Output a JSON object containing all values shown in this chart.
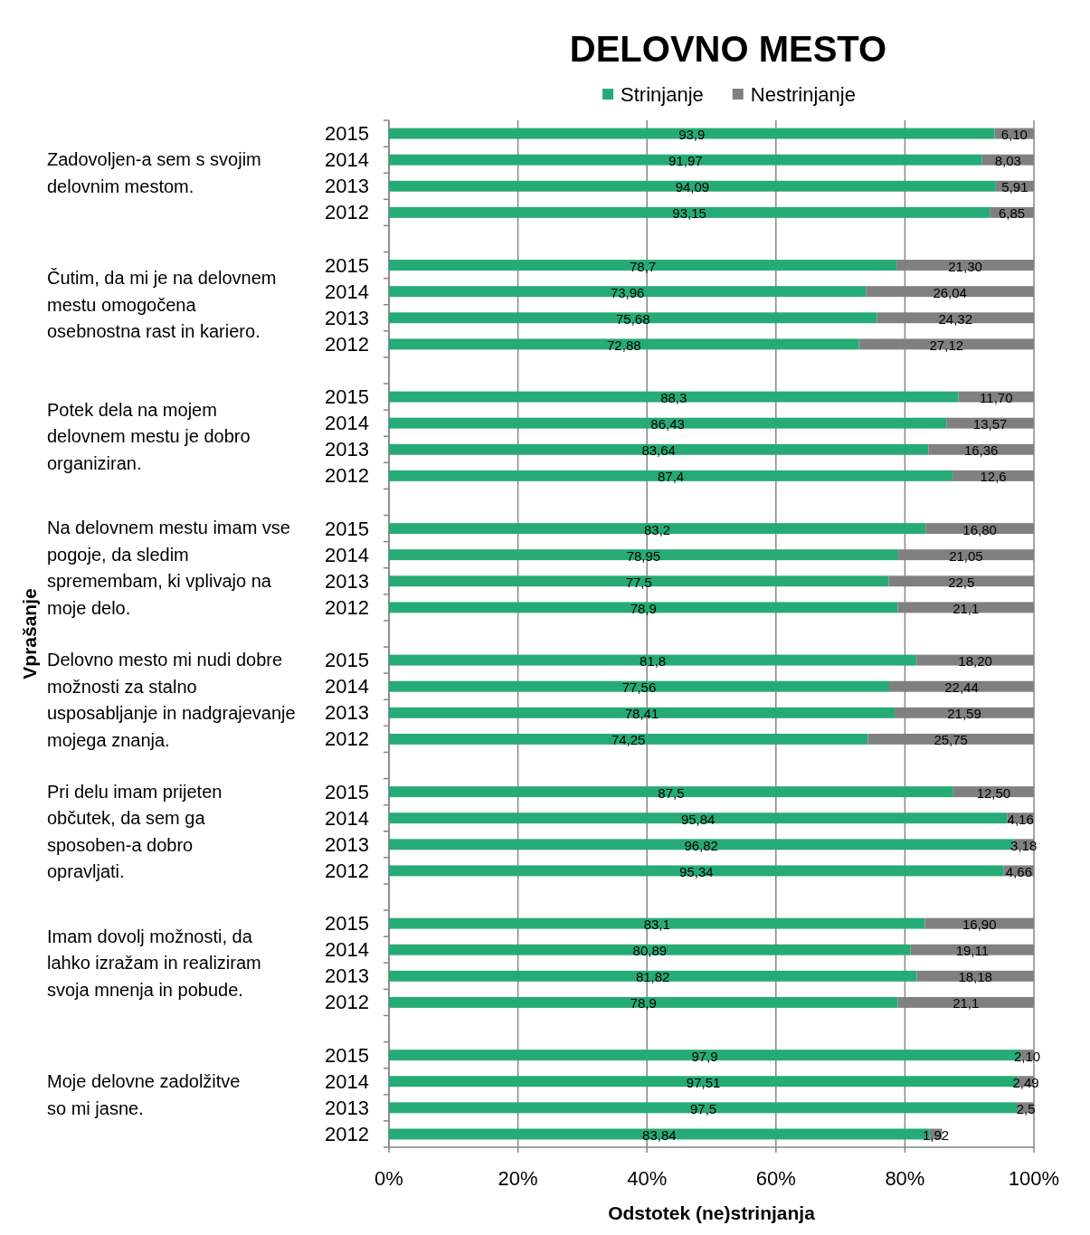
{
  "chart_data": {
    "type": "bar",
    "orientation": "horizontal",
    "stacked": true,
    "title": "DELOVNO MESTO",
    "xlabel": "Odstotek (ne)strinjanja",
    "categories": [
      "2015",
      "2014",
      "2013",
      "2012",
      null,
      "2015",
      "2014",
      "2013",
      "2012",
      null,
      "2015",
      "2014",
      "2013",
      "2012",
      null,
      "2015",
      "2014",
      "2013",
      "2012",
      null,
      "2015",
      "2014",
      "2013",
      "2012",
      null,
      "2015",
      "2014",
      "2013",
      "2012",
      null,
      "2015",
      "2014",
      "2013",
      "2012",
      null,
      "2015",
      "2014",
      "2013",
      "2012"
    ],
    "series": [
      {
        "name": "Strinjanje",
        "color": "#26ab76",
        "values": [
          93.9,
          91.97,
          94.09,
          93.15,
          null,
          78.7,
          73.96,
          75.68,
          72.88,
          null,
          88.3,
          86.43,
          83.64,
          87.4,
          null,
          83.2,
          78.95,
          77.5,
          78.9,
          null,
          81.8,
          77.56,
          78.41,
          74.25,
          null,
          87.5,
          95.84,
          96.82,
          95.34,
          null,
          83.1,
          80.89,
          81.82,
          78.9,
          null,
          97.9,
          97.51,
          97.5,
          83.84
        ],
        "value_labels": [
          "93,9",
          "91,97",
          "94,09",
          "93,15",
          null,
          "78,7",
          "73,96",
          "75,68",
          "72,88",
          null,
          "88,3",
          "86,43",
          "83,64",
          "87,4",
          null,
          "83,2",
          "78,95",
          "77,5",
          "78,9",
          null,
          "81,8",
          "77,56",
          "78,41",
          "74,25",
          null,
          "87,5",
          "95,84",
          "96,82",
          "95,34",
          null,
          "83,1",
          "80,89",
          "81,82",
          "78,9",
          null,
          "97,9",
          "97,51",
          "97,5",
          "83,84"
        ]
      },
      {
        "name": "Nestrinjanje",
        "color": "#808080",
        "values": [
          6.1,
          8.03,
          5.91,
          6.85,
          null,
          21.3,
          26.04,
          24.32,
          27.12,
          null,
          11.7,
          13.57,
          16.36,
          12.6,
          null,
          16.8,
          21.05,
          22.5,
          21.1,
          null,
          18.2,
          22.44,
          21.59,
          25.75,
          null,
          12.5,
          4.16,
          3.18,
          4.66,
          null,
          16.9,
          19.11,
          18.18,
          21.1,
          null,
          2.1,
          2.49,
          2.5,
          1.92
        ],
        "value_labels": [
          "6,10",
          "8,03",
          "5,91",
          "6,85",
          null,
          "21,30",
          "26,04",
          "24,32",
          "27,12",
          null,
          "11,70",
          "13,57",
          "16,36",
          "12,6",
          null,
          "16,80",
          "21,05",
          "22,5",
          "21,1",
          null,
          "18,20",
          "22,44",
          "21,59",
          "25,75",
          null,
          "12,50",
          "4,16",
          "3,18",
          "4,66",
          null,
          "16,90",
          "19,11",
          "18,18",
          "21,1",
          null,
          "2,10",
          "2,49",
          "2,5",
          "1,92"
        ]
      }
    ],
    "xlim": [
      0,
      100
    ],
    "xticks": [
      {
        "value": 0,
        "label": "0%"
      },
      {
        "value": 20,
        "label": "20%"
      },
      {
        "value": 40,
        "label": "40%"
      },
      {
        "value": 60,
        "label": "60%"
      },
      {
        "value": 80,
        "label": "80%"
      },
      {
        "value": 100,
        "label": "100%"
      }
    ],
    "grid": "x",
    "legend": "top",
    "annotations": [
      "Zadovoljen-a sem s svojim\ndelovnim mestom.",
      "Čutim, da mi je na delovnem\nmestu omogočena\nosebnostna rast in kariero.",
      "Potek dela na mojem\ndelovnem mestu je dobro\norganiziran.",
      "Na delovnem mestu imam vse\npogoje, da sledim\nspremembam, ki vplivajo na\nmoje delo.",
      "Delovno mesto mi nudi dobre\nmožnosti za stalno\nusposabljanje in nadgrajevanje\nmojega znanja.",
      "Pri delu imam prijeten\nobčutek, da sem ga\nsposoben-a dobro\nopravljati.",
      "Imam dovolj možnosti, da\nlahko izražam in realiziram\nsvoja mnenja in pobude.",
      "Moje delovne zadolžitve\nso mi jasne.",
      "Vprašanje"
    ]
  }
}
